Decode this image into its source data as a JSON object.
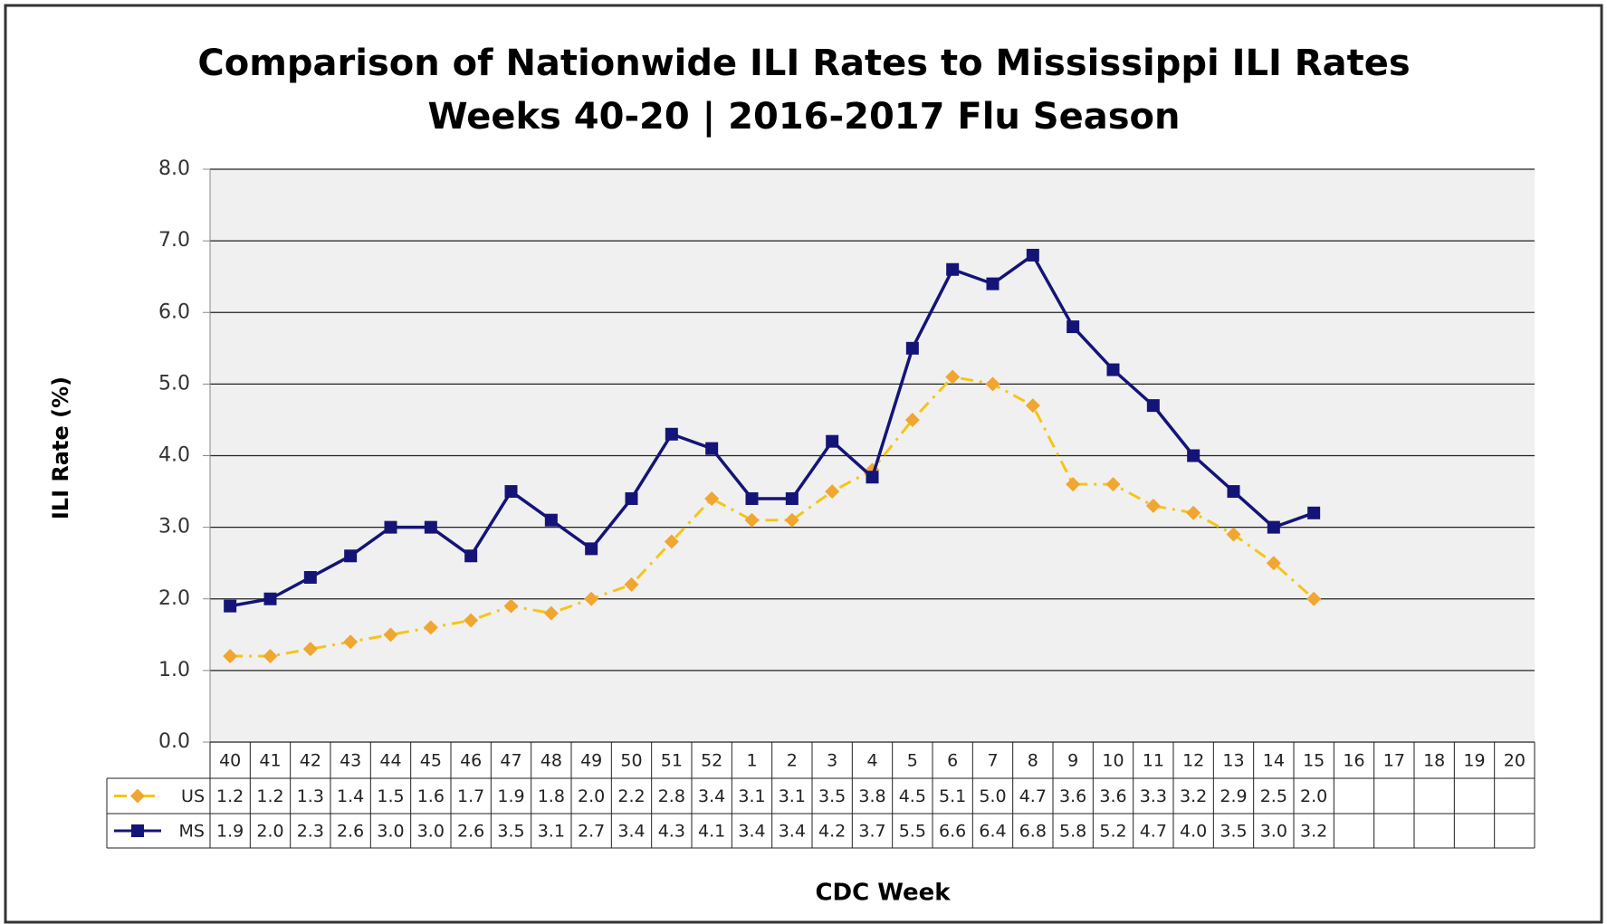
{
  "chart_data": {
    "type": "line",
    "title": "Comparison of Nationwide ILI Rates to Mississippi ILI Rates",
    "subtitle": "Weeks 40-20 | 2016-2017 Flu Season",
    "x_label": "CDC Week",
    "y_label": "ILI Rate (%)",
    "categories": [
      "40",
      "41",
      "42",
      "43",
      "44",
      "45",
      "46",
      "47",
      "48",
      "49",
      "50",
      "51",
      "52",
      "1",
      "2",
      "3",
      "4",
      "5",
      "6",
      "7",
      "8",
      "9",
      "10",
      "11",
      "12",
      "13",
      "14",
      "15",
      "16",
      "17",
      "18",
      "19",
      "20"
    ],
    "series": [
      {
        "name": "US",
        "color": "#f0a630",
        "line_color": "#f5c518",
        "dashed": true,
        "marker": "diamond",
        "values": [
          1.2,
          1.2,
          1.3,
          1.4,
          1.5,
          1.6,
          1.7,
          1.9,
          1.8,
          2.0,
          2.2,
          2.8,
          3.4,
          3.1,
          3.1,
          3.5,
          3.8,
          4.5,
          5.1,
          5.0,
          4.7,
          3.6,
          3.6,
          3.3,
          3.2,
          2.9,
          2.5,
          2.0,
          null,
          null,
          null,
          null,
          null
        ],
        "value_labels": [
          "1.2",
          "1.2",
          "1.3",
          "1.4",
          "1.5",
          "1.6",
          "1.7",
          "1.9",
          "1.8",
          "2.0",
          "2.2",
          "2.8",
          "3.4",
          "3.1",
          "3.1",
          "3.5",
          "3.8",
          "4.5",
          "5.1",
          "5.0",
          "4.7",
          "3.6",
          "3.6",
          "3.3",
          "3.2",
          "2.9",
          "2.5",
          "2.0",
          null,
          null,
          null,
          null,
          null
        ]
      },
      {
        "name": "MS",
        "color": "#141478",
        "line_color": "#141478",
        "dashed": false,
        "marker": "square",
        "values": [
          1.9,
          2.0,
          2.3,
          2.6,
          3.0,
          3.0,
          2.6,
          3.5,
          3.1,
          2.7,
          3.4,
          4.3,
          4.1,
          3.4,
          3.4,
          4.2,
          3.7,
          5.5,
          6.6,
          6.4,
          6.8,
          5.8,
          5.2,
          4.7,
          4.0,
          3.5,
          3.0,
          3.2,
          null,
          null,
          null,
          null,
          null
        ],
        "value_labels": [
          "1.9",
          "2.0",
          "2.3",
          "2.6",
          "3.0",
          "3.0",
          "2.6",
          "3.5",
          "3.1",
          "2.7",
          "3.4",
          "4.3",
          "4.1",
          "3.4",
          "3.4",
          "4.2",
          "3.7",
          "5.5",
          "6.6",
          "6.4",
          "6.8",
          "5.8",
          "5.2",
          "4.7",
          "4.0",
          "3.5",
          "3.0",
          "3.2",
          null,
          null,
          null,
          null,
          null
        ]
      }
    ],
    "ylim": [
      0,
      8
    ],
    "yticks": [
      {
        "value": 0,
        "label": "0.0"
      },
      {
        "value": 1,
        "label": "1.0"
      },
      {
        "value": 2,
        "label": "2.0"
      },
      {
        "value": 3,
        "label": "3.0"
      },
      {
        "value": 4,
        "label": "4.0"
      },
      {
        "value": 5,
        "label": "5.0"
      },
      {
        "value": 6,
        "label": "6.0"
      },
      {
        "value": 7,
        "label": "7.0"
      },
      {
        "value": 8,
        "label": "8.0"
      }
    ],
    "grid": true
  }
}
